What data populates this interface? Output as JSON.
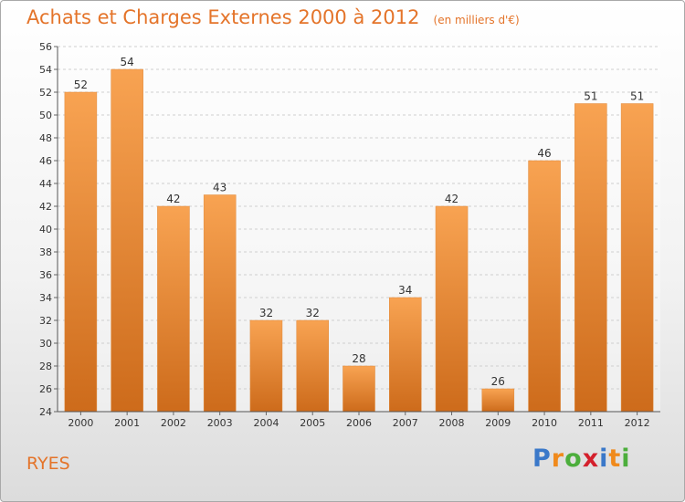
{
  "header": {
    "title": "Achats et Charges Externes 2000 à 2012",
    "unit": "(en milliers d'€)"
  },
  "footer": {
    "place": "RYES",
    "logo_text": "Proxiti"
  },
  "colors": {
    "accent": "#e4742a",
    "bar_top": "#f8a352",
    "bar_bottom": "#cd6b1b",
    "logo_letters": [
      "#3a78c9",
      "#f08a1c",
      "#4cae3c",
      "#d4202c",
      "#3a78c9",
      "#f08a1c",
      "#4cae3c"
    ]
  },
  "chart_data": {
    "type": "bar",
    "categories": [
      "2000",
      "2001",
      "2002",
      "2003",
      "2004",
      "2005",
      "2006",
      "2007",
      "2008",
      "2009",
      "2010",
      "2011",
      "2012"
    ],
    "values": [
      52,
      54,
      42,
      43,
      32,
      32,
      28,
      34,
      42,
      26,
      46,
      51,
      51
    ],
    "title": "Achats et Charges Externes 2000 à 2012",
    "ylim": [
      24,
      56
    ],
    "yticks": [
      24,
      26,
      28,
      30,
      32,
      34,
      36,
      38,
      40,
      42,
      44,
      46,
      48,
      50,
      52,
      54,
      56
    ],
    "grid": true,
    "data_labels": true
  }
}
